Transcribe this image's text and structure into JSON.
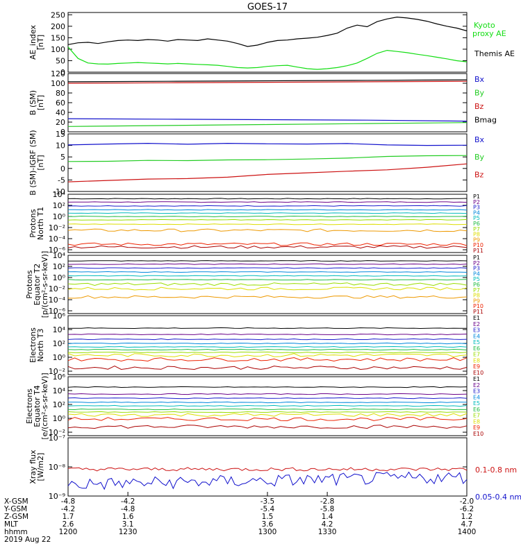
{
  "title": "GOES-17",
  "colors": {
    "axis": "#000000",
    "black": "#000000",
    "green": "#22dd22",
    "red": "#cc1111",
    "blue": "#1111cc",
    "ae_green": "#11dd11"
  },
  "chart_data": {
    "type": "line",
    "x_axis": {
      "range": [
        1200,
        1400
      ],
      "ticks": [
        1200,
        1230,
        1300,
        1330,
        1400
      ],
      "rows": [
        {
          "label": "X-GSM",
          "values": [
            "-4.8",
            "-4.2",
            "-3.5",
            "-2.8",
            "-2.0"
          ]
        },
        {
          "label": "Y-GSM",
          "values": [
            "-4.2",
            "-4.8",
            "-5.4",
            "-5.8",
            "-6.2"
          ]
        },
        {
          "label": "Z-GSM",
          "values": [
            "1.7",
            "1.6",
            "1.5",
            "1.4",
            "1.2"
          ]
        },
        {
          "label": "MLT",
          "values": [
            "2.6",
            "3.1",
            "3.6",
            "4.2",
            "4.7"
          ]
        },
        {
          "label": "hhmm",
          "values": [
            "1200",
            "1230",
            "1300",
            "1330",
            "1400"
          ]
        }
      ],
      "date": "2019 Aug 22"
    },
    "panels": [
      {
        "id": "ae",
        "ylabel": [
          "AE_index",
          "[nT]"
        ],
        "scale": "linear",
        "ylim": [
          0,
          260
        ],
        "ticks": [
          0,
          50,
          100,
          150,
          200,
          250
        ],
        "tick_labels": [
          "0",
          "50",
          "100",
          "150",
          "200",
          "250"
        ],
        "legend": [
          {
            "text": "Kyoto",
            "color": "#11dd11"
          },
          {
            "text": "proxy AE",
            "color": "#11dd11"
          },
          {
            "text": "Themis AE",
            "color": "#000000"
          }
        ],
        "series": [
          {
            "name": "Themis AE",
            "color": "#000000",
            "x": [
              1200,
              1205,
              1210,
              1215,
              1220,
              1225,
              1230,
              1235,
              1240,
              1245,
              1250,
              1255,
              1260,
              1265,
              1270,
              1275,
              1280,
              1285,
              1290,
              1295,
              1300,
              1305,
              1310,
              1315,
              1320,
              1325,
              1330,
              1335,
              1340,
              1345,
              1350,
              1355,
              1360,
              1365,
              1370,
              1375,
              1380,
              1385,
              1390,
              1395,
              1400
            ],
            "y": [
              120,
              128,
              130,
              125,
              132,
              138,
              140,
              138,
              142,
              140,
              135,
              142,
              140,
              138,
              145,
              140,
              135,
              125,
              112,
              118,
              130,
              138,
              140,
              145,
              148,
              152,
              160,
              170,
              192,
              205,
              198,
              220,
              232,
              240,
              236,
              230,
              222,
              210,
              200,
              192,
              180
            ]
          },
          {
            "name": "Kyoto proxy AE",
            "color": "#11dd11",
            "x": [
              1200,
              1205,
              1210,
              1215,
              1220,
              1225,
              1230,
              1235,
              1240,
              1245,
              1250,
              1255,
              1260,
              1265,
              1270,
              1275,
              1280,
              1285,
              1290,
              1295,
              1300,
              1305,
              1310,
              1315,
              1320,
              1325,
              1330,
              1335,
              1340,
              1345,
              1350,
              1355,
              1360,
              1365,
              1370,
              1375,
              1380,
              1385,
              1390,
              1395,
              1400
            ],
            "y": [
              110,
              60,
              40,
              36,
              35,
              38,
              40,
              42,
              40,
              38,
              36,
              38,
              36,
              34,
              32,
              30,
              25,
              20,
              18,
              20,
              25,
              28,
              30,
              22,
              15,
              12,
              15,
              20,
              28,
              40,
              60,
              82,
              95,
              90,
              85,
              78,
              72,
              65,
              58,
              50,
              45
            ]
          }
        ]
      },
      {
        "id": "bsm",
        "ylabel": [
          "B (SM)",
          "[nT]"
        ],
        "scale": "linear",
        "ylim": [
          0,
          120
        ],
        "ticks": [
          0,
          20,
          40,
          60,
          80,
          100,
          120
        ],
        "tick_labels": [
          "0",
          "20",
          "40",
          "60",
          "80",
          "100",
          "120"
        ],
        "legend": [
          {
            "text": "Bx",
            "color": "#1111cc"
          },
          {
            "text": "By",
            "color": "#22cc22"
          },
          {
            "text": "Bz",
            "color": "#cc1111"
          },
          {
            "text": "Bmag",
            "color": "#000000"
          }
        ],
        "series": [
          {
            "name": "Bmag",
            "color": "#000000",
            "x": [
              1200,
              1250,
              1300,
              1350,
              1400
            ],
            "y": [
              103,
              104,
              105,
              106,
              107
            ]
          },
          {
            "name": "Bz",
            "color": "#cc1111",
            "x": [
              1200,
              1250,
              1300,
              1350,
              1400
            ],
            "y": [
              100,
              101,
              102,
              103,
              104
            ]
          },
          {
            "name": "Bx",
            "color": "#1111cc",
            "x": [
              1200,
              1250,
              1300,
              1350,
              1400
            ],
            "y": [
              27,
              26,
              25,
              24,
              22
            ]
          },
          {
            "name": "By",
            "color": "#22cc22",
            "x": [
              1200,
              1250,
              1300,
              1350,
              1400
            ],
            "y": [
              11,
              13,
              15,
              17,
              19
            ]
          }
        ]
      },
      {
        "id": "bigrf",
        "ylabel": [
          "B (SM)-IGRF (SM)",
          "[nT]"
        ],
        "scale": "linear",
        "ylim": [
          -10,
          15
        ],
        "ticks": [
          -10,
          -5,
          0,
          5,
          10,
          15
        ],
        "tick_labels": [
          "-10",
          "-5",
          "0",
          "5",
          "10",
          "15"
        ],
        "legend": [
          {
            "text": "Bx",
            "color": "#1111cc"
          },
          {
            "text": "By",
            "color": "#22cc22"
          },
          {
            "text": "Bz",
            "color": "#cc1111"
          }
        ],
        "series": [
          {
            "name": "Bx",
            "color": "#1111cc",
            "x": [
              1200,
              1220,
              1240,
              1260,
              1280,
              1300,
              1320,
              1340,
              1360,
              1380,
              1400
            ],
            "y": [
              10.2,
              10.6,
              10.9,
              10.5,
              10.9,
              10.7,
              10.6,
              10.8,
              10.2,
              10.0,
              10.1
            ]
          },
          {
            "name": "By",
            "color": "#22cc22",
            "x": [
              1200,
              1220,
              1240,
              1260,
              1280,
              1300,
              1320,
              1340,
              1360,
              1380,
              1400
            ],
            "y": [
              3.0,
              3.1,
              3.5,
              3.4,
              3.7,
              3.8,
              4.1,
              4.5,
              5.2,
              5.5,
              5.6
            ]
          },
          {
            "name": "Bz",
            "color": "#cc1111",
            "x": [
              1200,
              1220,
              1240,
              1260,
              1280,
              1300,
              1320,
              1340,
              1360,
              1380,
              1400
            ],
            "y": [
              -5.8,
              -5.2,
              -4.6,
              -4.4,
              -3.8,
              -2.6,
              -1.9,
              -1.2,
              -0.6,
              0.5,
              2.0
            ]
          }
        ]
      },
      {
        "id": "pn",
        "ylabel": [
          "Protons",
          "North T1"
        ],
        "scale": "log",
        "ylim_exp": [
          -6.5,
          4
        ],
        "ticks_exp": [
          -6,
          -4,
          -2,
          0,
          2,
          4
        ],
        "tick_labels": [
          "10⁻⁶",
          "10⁻⁴",
          "10⁻²",
          "10⁰",
          "10²",
          "10⁴"
        ],
        "legend": [
          {
            "text": "P1",
            "color": "#000000"
          },
          {
            "text": "P2",
            "color": "#6a0088"
          },
          {
            "text": "P3",
            "color": "#1a1acc"
          },
          {
            "text": "P4",
            "color": "#0088dd"
          },
          {
            "text": "P5",
            "color": "#00bbbb"
          },
          {
            "text": "P6",
            "color": "#22bb44"
          },
          {
            "text": "P7",
            "color": "#99dd00"
          },
          {
            "text": "P8",
            "color": "#dddd00"
          },
          {
            "text": "P9",
            "color": "#ee9900"
          },
          {
            "text": "P10",
            "color": "#ee2200"
          },
          {
            "text": "P11",
            "color": "#aa0000"
          }
        ],
        "levels_exp": [
          3.2,
          2.6,
          1.9,
          1.2,
          0.6,
          0.0,
          -0.6,
          -1.4,
          -2.5,
          -5.0,
          -5.5
        ]
      },
      {
        "id": "pe",
        "ylabel": [
          "Protons",
          "Equator T2",
          "[p/(cm²-s-sr-keV)]"
        ],
        "scale": "log",
        "ylim_exp": [
          -6.5,
          4
        ],
        "ticks_exp": [
          -6,
          -4,
          -2,
          0,
          2,
          4
        ],
        "tick_labels": [
          "10⁻⁶",
          "10⁻⁴",
          "10⁻²",
          "10⁰",
          "10²",
          "10⁴"
        ],
        "legend": [
          {
            "text": "P1",
            "color": "#000000"
          },
          {
            "text": "P2",
            "color": "#6a0088"
          },
          {
            "text": "P3",
            "color": "#1a1acc"
          },
          {
            "text": "P4",
            "color": "#0088dd"
          },
          {
            "text": "P5",
            "color": "#00bbbb"
          },
          {
            "text": "P6",
            "color": "#22bb44"
          },
          {
            "text": "P7",
            "color": "#99dd00"
          },
          {
            "text": "P8",
            "color": "#dddd00"
          },
          {
            "text": "P9",
            "color": "#ee9900"
          },
          {
            "text": "P10",
            "color": "#ee2200"
          },
          {
            "text": "P11",
            "color": "#aa0000"
          }
        ],
        "levels_exp": [
          3.0,
          2.4,
          1.7,
          1.0,
          0.3,
          -0.4,
          -1.2,
          -2.0,
          -3.5
        ]
      },
      {
        "id": "en",
        "ylabel": [
          "Electrons",
          "North T3"
        ],
        "scale": "log",
        "ylim_exp": [
          -2.5,
          6
        ],
        "ticks_exp": [
          -2,
          0,
          2,
          4,
          6
        ],
        "tick_labels": [
          "10⁻²",
          "10⁰",
          "10²",
          "10⁴",
          "10⁶"
        ],
        "legend": [
          {
            "text": "E1",
            "color": "#000000"
          },
          {
            "text": "E2",
            "color": "#6a0088"
          },
          {
            "text": "E3",
            "color": "#1a1acc"
          },
          {
            "text": "E4",
            "color": "#0088dd"
          },
          {
            "text": "E5",
            "color": "#00bbbb"
          },
          {
            "text": "E6",
            "color": "#22bb44"
          },
          {
            "text": "E7",
            "color": "#99dd00"
          },
          {
            "text": "E8",
            "color": "#dddd00"
          },
          {
            "text": "E9",
            "color": "#ee2200"
          },
          {
            "text": "E10",
            "color": "#aa0000"
          }
        ],
        "levels_exp": [
          4.2,
          3.3,
          2.6,
          2.0,
          1.5,
          1.1,
          0.7,
          0.3,
          -0.3,
          -1.5
        ]
      },
      {
        "id": "ee",
        "ylabel": [
          "Electrons",
          "Equator T4",
          "[e/(cm²-s-sr-keV)]"
        ],
        "scale": "log",
        "ylim_exp": [
          -2.5,
          6
        ],
        "ticks_exp": [
          -2,
          0,
          2,
          4,
          6
        ],
        "tick_labels": [
          "10⁻²",
          "10⁰",
          "10²",
          "10⁴",
          "10⁶"
        ],
        "legend": [
          {
            "text": "E1",
            "color": "#000000"
          },
          {
            "text": "E2",
            "color": "#6a0088"
          },
          {
            "text": "E3",
            "color": "#1a1acc"
          },
          {
            "text": "E4",
            "color": "#0088dd"
          },
          {
            "text": "E5",
            "color": "#00bbbb"
          },
          {
            "text": "E6",
            "color": "#22bb44"
          },
          {
            "text": "E7",
            "color": "#99dd00"
          },
          {
            "text": "E8",
            "color": "#dddd00"
          },
          {
            "text": "E9",
            "color": "#ee2200"
          },
          {
            "text": "E10",
            "color": "#aa0000"
          }
        ],
        "levels_exp": [
          4.5,
          3.5,
          2.9,
          2.3,
          1.8,
          1.3,
          0.9,
          0.5,
          -0.1,
          -1.2
        ]
      },
      {
        "id": "xray",
        "ylabel": [
          "Xray flux",
          "[W/m2]"
        ],
        "scale": "log",
        "ylim_exp": [
          -9,
          -7
        ],
        "ticks_exp": [
          -9,
          -8,
          -7
        ],
        "tick_labels": [
          "10⁻⁹",
          "10⁻⁸",
          "10⁻⁷"
        ],
        "legend": [
          {
            "text": "0.1-0.8 nm",
            "color": "#cc1111"
          },
          {
            "text": "0.05-0.4 nm",
            "color": "#1111cc"
          }
        ],
        "series": [
          {
            "name": "0.1-0.8 nm",
            "color": "#cc1111",
            "level_exp": -8.08,
            "noise": 0.06
          },
          {
            "name": "0.05-0.4 nm",
            "color": "#1111cc",
            "level_exp": -8.6,
            "noise": 0.22
          }
        ]
      }
    ]
  }
}
